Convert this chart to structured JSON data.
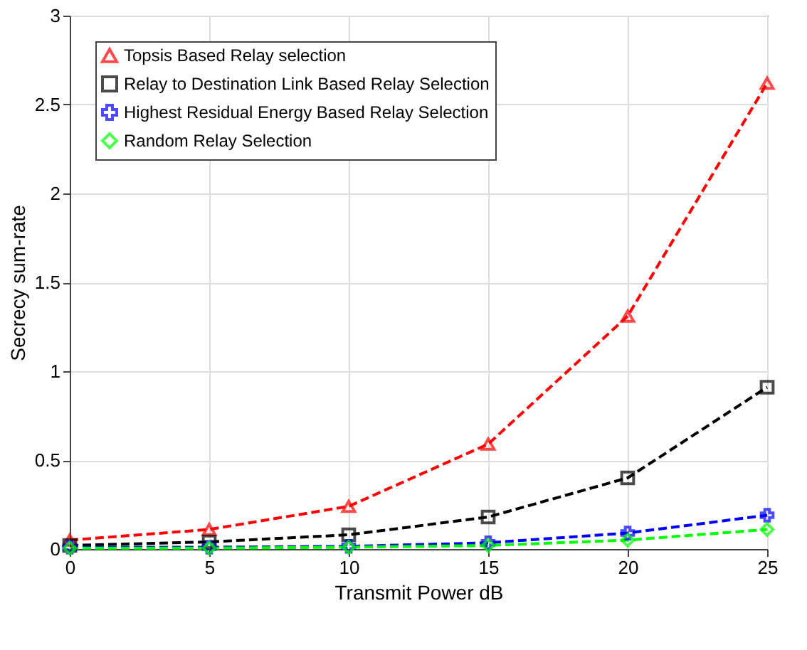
{
  "chart_data": {
    "type": "line",
    "xlabel": "Transmit Power dB",
    "ylabel": "Secrecy sum-rate",
    "x": [
      0,
      5,
      10,
      15,
      20,
      25
    ],
    "series": [
      {
        "name": "Topsis Based Relay selection",
        "color": "#ff0000",
        "marker": "triangle",
        "values": [
          0.05,
          0.11,
          0.24,
          0.59,
          1.31,
          2.62
        ]
      },
      {
        "name": "Relay to Destination Link Based Relay Selection",
        "color": "#000000",
        "marker": "square",
        "values": [
          0.02,
          0.04,
          0.08,
          0.18,
          0.4,
          0.91
        ]
      },
      {
        "name": "Highest Residual Energy Based Relay Selection",
        "color": "#0000ff",
        "marker": "cross",
        "values": [
          0.01,
          0.01,
          0.015,
          0.035,
          0.09,
          0.19
        ]
      },
      {
        "name": "Random Relay Selection",
        "color": "#00ff00",
        "marker": "diamond",
        "values": [
          0.005,
          0.005,
          0.01,
          0.02,
          0.05,
          0.11
        ]
      }
    ],
    "xlim": [
      0,
      25
    ],
    "xticks": [
      0,
      5,
      10,
      15,
      20,
      25
    ],
    "ylim": [
      0,
      3
    ],
    "yticks": [
      0,
      0.5,
      1,
      1.5,
      2,
      2.5,
      3
    ],
    "grid": true,
    "legend": "top left",
    "line_style": "dashed"
  }
}
